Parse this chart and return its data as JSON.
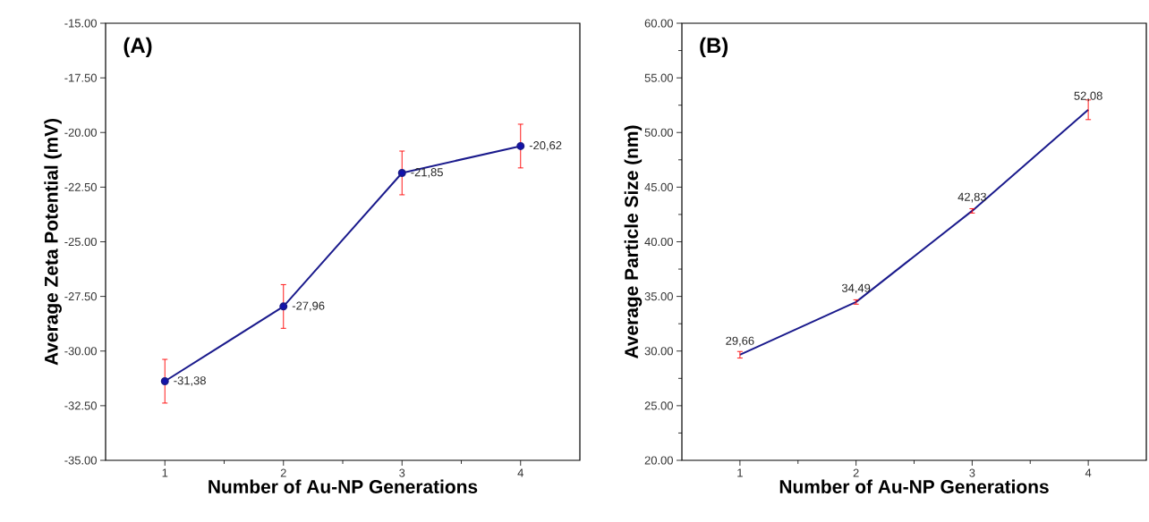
{
  "chart_data": [
    {
      "type": "line",
      "xlabel": "Number of Au-NP Generations",
      "ylabel": "Average Zeta Potential (mV)",
      "annotations": [
        "(A)"
      ],
      "categories": [
        "1",
        "2",
        "3",
        "4"
      ],
      "values": [
        -31.38,
        -27.96,
        -21.85,
        -20.62
      ],
      "errors": [
        1.0,
        1.0,
        1.0,
        1.0
      ],
      "value_labels": [
        "-31,38",
        "-27,96",
        "-21,85",
        "-20,62"
      ],
      "color": "#1a1a8c",
      "marker": "circle",
      "line_style": "solid",
      "ylim": [
        -35,
        -15
      ],
      "yticks": [
        {
          "value": -35,
          "label": "-35.00"
        },
        {
          "value": -32.5,
          "label": "-32.50"
        },
        {
          "value": -30,
          "label": "-30.00"
        },
        {
          "value": -27.5,
          "label": "-27.50"
        },
        {
          "value": -25,
          "label": "-25.00"
        },
        {
          "value": -22.5,
          "label": "-22.50"
        },
        {
          "value": -20,
          "label": "-20.00"
        },
        {
          "value": -17.5,
          "label": "-17.50"
        },
        {
          "value": -15,
          "label": "-15.00"
        }
      ],
      "grid": false
    },
    {
      "type": "line",
      "xlabel": "Number of Au-NP Generations",
      "ylabel": "Average Particle Size (nm)",
      "annotations": [
        "(B)"
      ],
      "categories": [
        "1",
        "2",
        "3",
        "4"
      ],
      "values": [
        29.66,
        34.49,
        42.83,
        52.08
      ],
      "errors": [
        0.3,
        0.2,
        0.2,
        0.9
      ],
      "value_labels": [
        "29,66",
        "34,49",
        "42,83",
        "52,08"
      ],
      "color": "#1a1a8c",
      "marker": "none",
      "line_style": "solid",
      "ylim": [
        20,
        60
      ],
      "yticks": [
        {
          "value": 20,
          "label": "20.00"
        },
        {
          "value": 25,
          "label": "25.00"
        },
        {
          "value": 30,
          "label": "30.00"
        },
        {
          "value": 35,
          "label": "35.00"
        },
        {
          "value": 40,
          "label": "40.00"
        },
        {
          "value": 45,
          "label": "45.00"
        },
        {
          "value": 50,
          "label": "50.00"
        },
        {
          "value": 55,
          "label": "55.00"
        },
        {
          "value": 60,
          "label": "60.00"
        }
      ],
      "grid": false
    }
  ]
}
